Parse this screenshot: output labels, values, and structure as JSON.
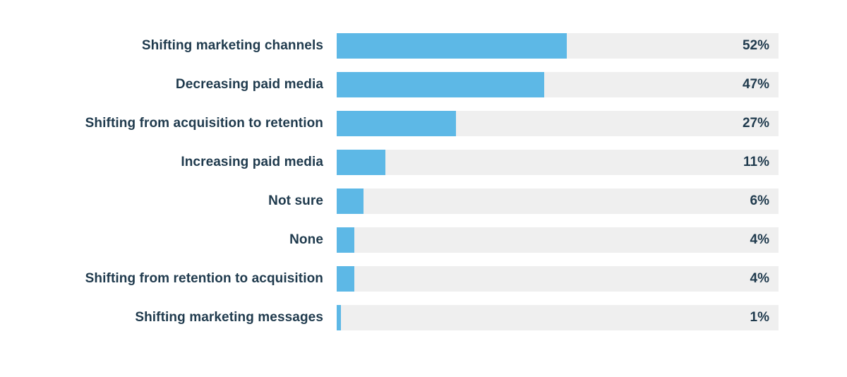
{
  "chart_data": {
    "type": "bar",
    "orientation": "horizontal",
    "categories": [
      "Shifting marketing channels",
      "Decreasing paid media",
      "Shifting from acquisition to retention",
      "Increasing paid media",
      "Not sure",
      "None",
      "Shifting from retention to acquisition",
      "Shifting marketing messages"
    ],
    "values": [
      52,
      47,
      27,
      11,
      6,
      4,
      4,
      1
    ],
    "value_labels": [
      "52%",
      "47%",
      "27%",
      "11%",
      "6%",
      "4%",
      "4%",
      "1%"
    ],
    "unit": "%",
    "xlim": [
      0,
      100
    ],
    "grid": false,
    "legend": "none",
    "bar_color": "#5db8e6",
    "track_color": "#efefef",
    "text_color": "#1f3a4d"
  }
}
